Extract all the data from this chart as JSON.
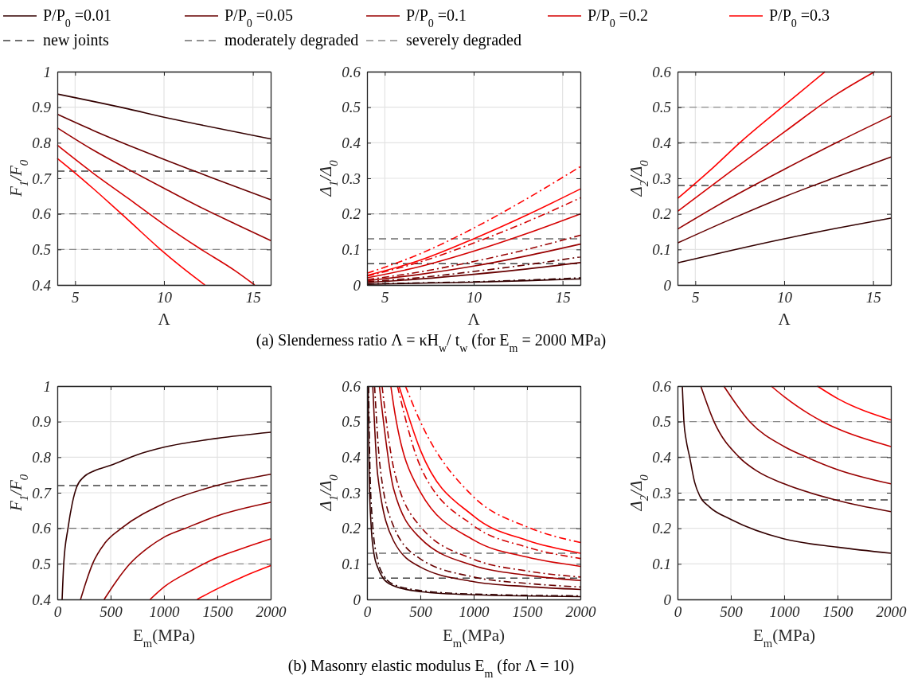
{
  "chart_data": [
    {
      "type": "line",
      "xlabel": "Λ",
      "ylabel": "F$_{1}$/F$_{0}$",
      "xlim": [
        4,
        16
      ],
      "xticks": [
        5,
        10,
        15
      ],
      "ylim": [
        0.4,
        1
      ],
      "yticks": [
        0.4,
        0.5,
        0.6,
        0.7,
        0.8,
        0.9,
        1
      ],
      "grid": true,
      "legend": "top",
      "annotations": [
        "(a) Slenderness ratio Λ = κH$_{w}$/ t$_{w}$ (for E$_{m}$ = 2000 MPa)"
      ],
      "ref_lines": [
        {
          "axis": "y",
          "value": 0.72,
          "label": "new joints",
          "color": "#404040",
          "line_style": "dashed"
        },
        {
          "axis": "y",
          "value": 0.6,
          "label": "moderately degraded",
          "color": "#6e6e6e",
          "line_style": "dashed"
        },
        {
          "axis": "y",
          "value": 0.5,
          "label": "severely degraded",
          "color": "#8c8c8c",
          "line_style": "dashed"
        }
      ],
      "series": [
        {
          "name": "P/P$_{0}$ =0.01",
          "color": "#330000",
          "x": [
            4,
            8,
            10,
            12,
            16
          ],
          "values": [
            0.937,
            0.895,
            0.872,
            0.851,
            0.811
          ]
        },
        {
          "name": "P/P$_{0}$ =0.05",
          "color": "#660000",
          "x": [
            4,
            6,
            8,
            10,
            12,
            14,
            16
          ],
          "values": [
            0.88,
            0.835,
            0.793,
            0.753,
            0.715,
            0.677,
            0.64
          ]
        },
        {
          "name": "P/P$_{0}$ =0.1",
          "color": "#990000",
          "x": [
            4,
            6,
            8,
            10,
            12,
            14,
            16
          ],
          "values": [
            0.842,
            0.78,
            0.725,
            0.672,
            0.62,
            0.572,
            0.525
          ]
        },
        {
          "name": "P/P$_{0}$ =0.2",
          "color": "#d40000",
          "x": [
            4,
            6,
            8,
            10,
            12,
            14,
            15.1
          ],
          "values": [
            0.793,
            0.715,
            0.643,
            0.57,
            0.503,
            0.44,
            0.4
          ]
        },
        {
          "name": "P/P$_{0}$ =0.3",
          "color": "#ff0000",
          "x": [
            4,
            5,
            6,
            8,
            9.8,
            11,
            12.3
          ],
          "values": [
            0.756,
            0.715,
            0.672,
            0.582,
            0.5,
            0.45,
            0.4
          ]
        }
      ]
    },
    {
      "type": "line",
      "xlabel": "Λ",
      "ylabel": "Δ$_{1}$/Δ$_{0}$",
      "xlim": [
        4,
        16
      ],
      "xticks": [
        5,
        10,
        15
      ],
      "ylim": [
        0,
        0.6
      ],
      "yticks": [
        0,
        0.1,
        0.2,
        0.3,
        0.4,
        0.5,
        0.6
      ],
      "grid": true,
      "ref_lines": [
        {
          "axis": "y",
          "value": 0.06,
          "color": "#404040",
          "line_style": "dashed"
        },
        {
          "axis": "y",
          "value": 0.13,
          "color": "#6e6e6e",
          "line_style": "dashed"
        },
        {
          "axis": "y",
          "value": 0.2,
          "color": "#8c8c8c",
          "line_style": "dashed"
        }
      ],
      "series": [
        {
          "color": "#330000",
          "x": [
            4,
            7,
            10,
            13,
            16
          ],
          "values": [
            0.002,
            0.005,
            0.008,
            0.012,
            0.017
          ]
        },
        {
          "color": "#330000",
          "line_style": "dashdot",
          "x": [
            4,
            7,
            10,
            13,
            16
          ],
          "values": [
            0.003,
            0.006,
            0.009,
            0.014,
            0.02
          ]
        },
        {
          "color": "#660000",
          "x": [
            4,
            7,
            10,
            13,
            16
          ],
          "values": [
            0.007,
            0.017,
            0.03,
            0.045,
            0.063
          ]
        },
        {
          "color": "#660000",
          "line_style": "dashdot",
          "x": [
            4,
            7,
            10,
            13,
            16
          ],
          "values": [
            0.009,
            0.021,
            0.038,
            0.057,
            0.079
          ]
        },
        {
          "color": "#990000",
          "x": [
            4,
            7,
            10,
            13,
            16
          ],
          "values": [
            0.012,
            0.03,
            0.053,
            0.082,
            0.115
          ]
        },
        {
          "color": "#990000",
          "line_style": "dashdot",
          "x": [
            4,
            7,
            10,
            13,
            16
          ],
          "values": [
            0.015,
            0.037,
            0.066,
            0.1,
            0.14
          ]
        },
        {
          "color": "#d40000",
          "x": [
            4,
            7,
            10,
            13,
            16
          ],
          "values": [
            0.02,
            0.052,
            0.095,
            0.145,
            0.2
          ]
        },
        {
          "color": "#d40000",
          "line_style": "dashdot",
          "x": [
            4,
            7,
            10,
            13,
            16
          ],
          "values": [
            0.025,
            0.065,
            0.118,
            0.178,
            0.245
          ]
        },
        {
          "color": "#ff0000",
          "x": [
            4,
            7,
            10,
            13,
            16
          ],
          "values": [
            0.027,
            0.07,
            0.13,
            0.197,
            0.27
          ]
        },
        {
          "color": "#ff0000",
          "line_style": "dashdot",
          "x": [
            4,
            7,
            10,
            13,
            16
          ],
          "values": [
            0.033,
            0.088,
            0.16,
            0.243,
            0.333
          ]
        }
      ]
    },
    {
      "type": "line",
      "xlabel": "Λ",
      "ylabel": "Δ$_{2}$/Δ$_{0}$",
      "xlim": [
        4,
        16
      ],
      "xticks": [
        5,
        10,
        15
      ],
      "ylim": [
        0,
        0.6
      ],
      "yticks": [
        0,
        0.1,
        0.2,
        0.3,
        0.4,
        0.5,
        0.6
      ],
      "grid": true,
      "ref_lines": [
        {
          "axis": "y",
          "value": 0.28,
          "color": "#404040",
          "line_style": "dashed"
        },
        {
          "axis": "y",
          "value": 0.4,
          "color": "#6e6e6e",
          "line_style": "dashed"
        },
        {
          "axis": "y",
          "value": 0.5,
          "color": "#8c8c8c",
          "line_style": "dashed"
        }
      ],
      "series": [
        {
          "color": "#330000",
          "x": [
            4,
            7,
            10,
            13,
            16
          ],
          "values": [
            0.062,
            0.097,
            0.13,
            0.16,
            0.188
          ]
        },
        {
          "color": "#660000",
          "x": [
            4,
            7,
            10,
            13,
            16
          ],
          "values": [
            0.118,
            0.185,
            0.248,
            0.305,
            0.36
          ]
        },
        {
          "color": "#990000",
          "x": [
            4,
            7,
            10,
            13,
            16
          ],
          "values": [
            0.157,
            0.245,
            0.325,
            0.402,
            0.475
          ]
        },
        {
          "color": "#d40000",
          "x": [
            4,
            7,
            10,
            13,
            15.1
          ],
          "values": [
            0.207,
            0.32,
            0.43,
            0.538,
            0.6
          ]
        },
        {
          "color": "#ff0000",
          "x": [
            4,
            6,
            7.5,
            10,
            12.3
          ],
          "values": [
            0.243,
            0.33,
            0.4,
            0.505,
            0.6
          ]
        }
      ]
    },
    {
      "type": "line",
      "xlabel": "E$_{m}$(MPa)",
      "ylabel": "F$_{1}$/F$_{0}$",
      "xlim": [
        0,
        2000
      ],
      "xticks": [
        0,
        500,
        1000,
        1500,
        2000
      ],
      "ylim": [
        0.4,
        1
      ],
      "yticks": [
        0.4,
        0.5,
        0.6,
        0.7,
        0.8,
        0.9,
        1
      ],
      "grid": true,
      "annotations": [
        "(b) Masonry elastic modulus E$_{m}$ (for Λ = 10)"
      ],
      "ref_lines": [
        {
          "axis": "y",
          "value": 0.72,
          "color": "#404040",
          "line_style": "dashed"
        },
        {
          "axis": "y",
          "value": 0.6,
          "color": "#6e6e6e",
          "line_style": "dashed"
        },
        {
          "axis": "y",
          "value": 0.5,
          "color": "#8c8c8c",
          "line_style": "dashed"
        }
      ],
      "series": [
        {
          "color": "#330000",
          "x": [
            45,
            60,
            100,
            140,
            180,
            250,
            350,
            500,
            750,
            1000,
            1500,
            2000
          ],
          "values": [
            0.4,
            0.5,
            0.6,
            0.67,
            0.715,
            0.745,
            0.762,
            0.777,
            0.807,
            0.828,
            0.853,
            0.87
          ]
        },
        {
          "color": "#660000",
          "x": [
            218,
            270,
            330,
            450,
            600,
            1000,
            1490,
            2000
          ],
          "values": [
            0.4,
            0.45,
            0.5,
            0.56,
            0.6,
            0.67,
            0.72,
            0.752
          ]
        },
        {
          "color": "#990000",
          "x": [
            439,
            550,
            680,
            850,
            1000,
            1200,
            1500,
            2000
          ],
          "values": [
            0.4,
            0.45,
            0.5,
            0.545,
            0.575,
            0.6,
            0.635,
            0.673
          ]
        },
        {
          "color": "#d40000",
          "x": [
            870,
            1000,
            1250,
            1500,
            1750,
            2000
          ],
          "values": [
            0.4,
            0.435,
            0.48,
            0.518,
            0.545,
            0.57
          ]
        },
        {
          "color": "#ff0000",
          "x": [
            1310,
            1500,
            1750,
            2000
          ],
          "values": [
            0.4,
            0.43,
            0.465,
            0.495
          ]
        }
      ]
    },
    {
      "type": "line",
      "xlabel": "E$_{m}$(MPa)",
      "ylabel": "Δ$_{1}$/Δ$_{0}$",
      "xlim": [
        0,
        2000
      ],
      "xticks": [
        0,
        500,
        1000,
        1500,
        2000
      ],
      "ylim": [
        0,
        0.6
      ],
      "yticks": [
        0,
        0.1,
        0.2,
        0.3,
        0.4,
        0.5,
        0.6
      ],
      "grid": true,
      "ref_lines": [
        {
          "axis": "y",
          "value": 0.06,
          "color": "#404040",
          "line_style": "dashed"
        },
        {
          "axis": "y",
          "value": 0.13,
          "color": "#6e6e6e",
          "line_style": "dashed"
        },
        {
          "axis": "y",
          "value": 0.2,
          "color": "#8c8c8c",
          "line_style": "dashed"
        }
      ],
      "series": [
        {
          "color": "#330000",
          "x": [
            10,
            20,
            40,
            70,
            100,
            150,
            250,
            500,
            1000,
            2000
          ],
          "values": [
            0.6,
            0.35,
            0.2,
            0.12,
            0.09,
            0.06,
            0.038,
            0.022,
            0.013,
            0.008
          ]
        },
        {
          "color": "#330000",
          "line_style": "dashdot",
          "x": [
            15,
            25,
            50,
            100,
            150,
            250,
            500,
            1000,
            2000
          ],
          "values": [
            0.6,
            0.4,
            0.22,
            0.11,
            0.07,
            0.042,
            0.025,
            0.015,
            0.01
          ]
        },
        {
          "color": "#660000",
          "x": [
            54,
            100,
            250,
            500,
            1000,
            1500,
            2000
          ],
          "values": [
            0.6,
            0.35,
            0.164,
            0.091,
            0.05,
            0.036,
            0.028
          ]
        },
        {
          "color": "#660000",
          "line_style": "dashdot",
          "x": [
            71,
            120,
            250,
            500,
            1000,
            1500,
            2000
          ],
          "values": [
            0.6,
            0.38,
            0.205,
            0.114,
            0.063,
            0.045,
            0.035
          ]
        },
        {
          "color": "#990000",
          "x": [
            116,
            250,
            500,
            1000,
            1500,
            2000
          ],
          "values": [
            0.6,
            0.31,
            0.172,
            0.095,
            0.068,
            0.053
          ]
        },
        {
          "color": "#990000",
          "line_style": "dashdot",
          "x": [
            141,
            250,
            500,
            1000,
            1500,
            2000
          ],
          "values": [
            0.6,
            0.369,
            0.205,
            0.113,
            0.08,
            0.063
          ]
        },
        {
          "color": "#d40000",
          "x": [
            223,
            250,
            500,
            1000,
            1500,
            2000
          ],
          "values": [
            0.6,
            0.545,
            0.302,
            0.167,
            0.119,
            0.093
          ]
        },
        {
          "color": "#d40000",
          "line_style": "dashdot",
          "x": [
            285,
            500,
            1000,
            1500,
            2000
          ],
          "values": [
            0.6,
            0.374,
            0.207,
            0.147,
            0.115
          ]
        },
        {
          "color": "#ff0000",
          "x": [
            300,
            500,
            1000,
            1500,
            2000
          ],
          "values": [
            0.6,
            0.42,
            0.234,
            0.166,
            0.13
          ]
        },
        {
          "color": "#ff0000",
          "line_style": "dashdot",
          "x": [
            360,
            500,
            1000,
            1500,
            2000
          ],
          "values": [
            0.6,
            0.5,
            0.288,
            0.204,
            0.16
          ]
        }
      ]
    },
    {
      "type": "line",
      "xlabel": "E$_{m}$(MPa)",
      "ylabel": "Δ$_{2}$/Δ$_{0}$",
      "xlim": [
        0,
        2000
      ],
      "xticks": [
        0,
        500,
        1000,
        1500,
        2000
      ],
      "ylim": [
        0,
        0.6
      ],
      "yticks": [
        0,
        0.1,
        0.2,
        0.3,
        0.4,
        0.5,
        0.6
      ],
      "grid": true,
      "ref_lines": [
        {
          "axis": "y",
          "value": 0.28,
          "color": "#404040",
          "line_style": "dashed"
        },
        {
          "axis": "y",
          "value": 0.4,
          "color": "#6e6e6e",
          "line_style": "dashed"
        },
        {
          "axis": "y",
          "value": 0.5,
          "color": "#8c8c8c",
          "line_style": "dashed"
        }
      ],
      "series": [
        {
          "color": "#330000",
          "x": [
            45,
            60,
            80,
            114,
            160,
            210,
            300,
            500,
            1000,
            1500,
            2000
          ],
          "values": [
            0.6,
            0.5,
            0.45,
            0.4,
            0.33,
            0.29,
            0.26,
            0.225,
            0.17,
            0.147,
            0.13
          ]
        },
        {
          "color": "#660000",
          "x": [
            218,
            342,
            578,
            750,
            1000,
            1480,
            2000
          ],
          "values": [
            0.6,
            0.5,
            0.4,
            0.36,
            0.325,
            0.28,
            0.247
          ]
        },
        {
          "color": "#990000",
          "x": [
            434,
            677,
            1000,
            1211,
            1500,
            2000
          ],
          "values": [
            0.6,
            0.5,
            0.43,
            0.4,
            0.365,
            0.325
          ]
        },
        {
          "color": "#d40000",
          "x": [
            878,
            1000,
            1360,
            1500,
            2000
          ],
          "values": [
            0.6,
            0.57,
            0.5,
            0.48,
            0.43
          ]
        },
        {
          "color": "#ff0000",
          "x": [
            1310,
            1500,
            2000
          ],
          "values": [
            0.6,
            0.565,
            0.505
          ]
        }
      ]
    }
  ]
}
